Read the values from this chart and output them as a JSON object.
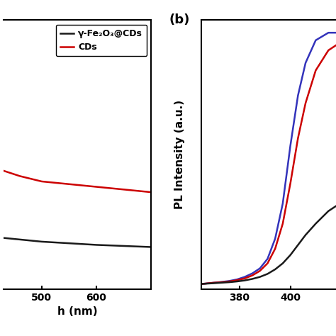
{
  "panel_a": {
    "xlim": [
      430,
      700
    ],
    "ylim": [
      0,
      0.5
    ],
    "x_ticks": [
      500,
      600
    ],
    "lines": [
      {
        "label": "γ-Fe₂O₃@CDs",
        "color": "#1a1a1a",
        "x": [
          430,
          460,
          500,
          550,
          600,
          650,
          700
        ],
        "y": [
          0.095,
          0.092,
          0.088,
          0.085,
          0.082,
          0.08,
          0.078
        ]
      },
      {
        "label": "CDs",
        "color": "#cc0000",
        "x": [
          430,
          460,
          500,
          550,
          600,
          650,
          700
        ],
        "y": [
          0.22,
          0.21,
          0.2,
          0.195,
          0.19,
          0.185,
          0.18
        ]
      }
    ],
    "legend_labels": [
      "γ-Fe₂O₃@CDs",
      "CDs"
    ],
    "legend_colors": [
      "#1a1a1a",
      "#cc0000"
    ]
  },
  "panel_b": {
    "xlim": [
      365,
      418
    ],
    "ylim": [
      -0.02,
      1.05
    ],
    "x_ticks": [
      380,
      400
    ],
    "ylabel": "PL Intensity (a.u.)",
    "lines": [
      {
        "color": "#3333bb",
        "x": [
          365,
          370,
          373,
          376,
          379,
          382,
          385,
          388,
          391,
          394,
          397,
          400,
          403,
          406,
          410,
          415,
          418
        ],
        "y": [
          0.0,
          0.005,
          0.008,
          0.012,
          0.018,
          0.028,
          0.042,
          0.062,
          0.1,
          0.18,
          0.32,
          0.55,
          0.75,
          0.88,
          0.97,
          1.0,
          1.0
        ]
      },
      {
        "color": "#cc0000",
        "x": [
          365,
          370,
          373,
          376,
          379,
          382,
          385,
          388,
          391,
          394,
          397,
          400,
          403,
          406,
          410,
          415,
          418
        ],
        "y": [
          0.0,
          0.005,
          0.007,
          0.01,
          0.015,
          0.022,
          0.034,
          0.052,
          0.082,
          0.14,
          0.24,
          0.4,
          0.58,
          0.72,
          0.85,
          0.93,
          0.95
        ]
      },
      {
        "color": "#1a1a1a",
        "x": [
          365,
          370,
          373,
          376,
          379,
          382,
          385,
          388,
          391,
          394,
          397,
          400,
          403,
          406,
          410,
          415,
          418
        ],
        "y": [
          0.0,
          0.003,
          0.005,
          0.007,
          0.01,
          0.014,
          0.02,
          0.028,
          0.04,
          0.058,
          0.082,
          0.115,
          0.155,
          0.195,
          0.24,
          0.29,
          0.31
        ]
      }
    ]
  },
  "b_label": "(b)",
  "background_color": "#ffffff",
  "legend_fontsize": 9,
  "axis_label_fontsize": 11,
  "tick_fontsize": 10,
  "linewidth": 1.8,
  "spine_linewidth": 1.5
}
